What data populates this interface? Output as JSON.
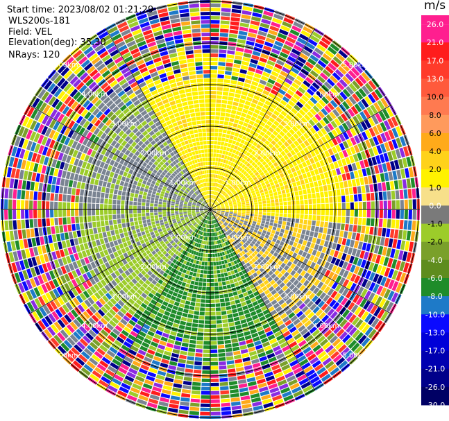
{
  "header": {
    "start_time": "Start time: 2023/08/02 01:21:29",
    "instrument": "WLS200s-181",
    "field": "Field: VEL",
    "elevation": "Elevation(deg): 35.30",
    "nrays": "NRays: 120"
  },
  "colorbar": {
    "unit": "m/s",
    "ticks": [
      "26.0",
      "21.0",
      "17.0",
      "13.0",
      "10.0",
      "8.0",
      "6.0",
      "4.0",
      "2.0",
      "1.0",
      "0.0",
      "-1.0",
      "-2.0",
      "-4.0",
      "-6.0",
      "-8.0",
      "-10.0",
      "-13.0",
      "-17.0",
      "-21.0",
      "-26.0",
      "-30.0"
    ],
    "colors": [
      "#ff1f8f",
      "#ff1c1c",
      "#ff3b2a",
      "#ff5a3c",
      "#ff7a50",
      "#ff9a5c",
      "#ffaa1a",
      "#ffd21a",
      "#fff200",
      "#f7e08a",
      "#7a7a7a",
      "#9ccc2a",
      "#7aa02a",
      "#5e8c1e",
      "#1e8c2a",
      "#1e7ac8",
      "#0a0aff",
      "#0000d8",
      "#0000b0",
      "#00008a",
      "#000064"
    ]
  },
  "range_labels": [
    "1.00km",
    "2.00km",
    "3.00km",
    "4.00km",
    "5.00km"
  ],
  "colors": {
    "pink": "#ff1f8f",
    "red": "#ff1c1c",
    "orange": "#ffaa1a",
    "yellow": "#fff200",
    "yellow2": "#ffd21a",
    "gray": "#7a8492",
    "lightgreen": "#9ccc2a",
    "olive": "#7aa02a",
    "green": "#1e8c2a",
    "blue": "#0a0aff",
    "navy": "#00008a"
  }
}
